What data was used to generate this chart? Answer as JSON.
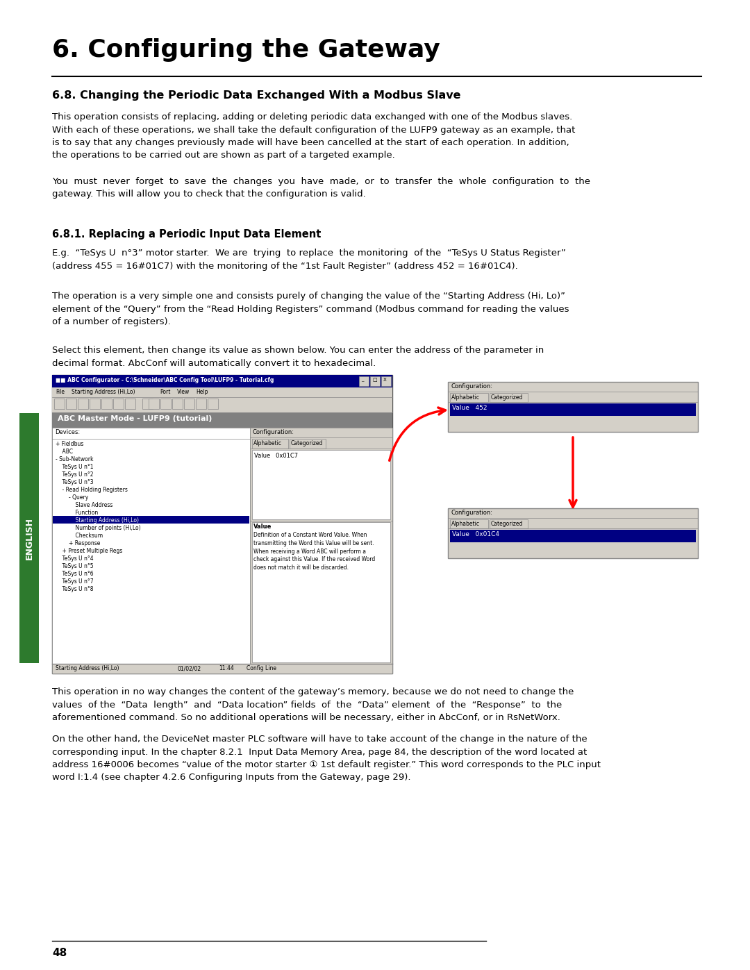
{
  "title": "6. Configuring the Gateway",
  "section_heading": "6.8. Changing the Periodic Data Exchanged With a Modbus Slave",
  "para1": "This operation consists of replacing, adding or deleting periodic data exchanged with one of the Modbus slaves.\nWith each of these operations, we shall take the default configuration of the LUFP9 gateway as an example, that\nis to say that any changes previously made will have been cancelled at the start of each operation. In addition,\nthe operations to be carried out are shown as part of a targeted example.",
  "para2": "You  must  never  forget  to  save  the  changes  you  have  made,  or  to  transfer  the  whole  configuration  to  the\ngateway. This will allow you to check that the configuration is valid.",
  "sub_heading": "6.8.1. Replacing a Periodic Input Data Element",
  "para3": "E.g.  “TeSys U  n°3” motor starter.  We are  trying  to replace  the monitoring  of the  “TeSys U Status Register”\n(address 455 = 16#01C7) with the monitoring of the “1st Fault Register” (address 452 = 16#01C4).",
  "para4": "The operation is a very simple one and consists purely of changing the value of the “Starting Address (Hi, Lo)”\nelement of the “Query” from the “Read Holding Registers” command (Modbus command for reading the values\nof a number of registers).",
  "para5": "Select this element, then change its value as shown below. You can enter the address of the parameter in\ndecimal format. AbcConf will automatically convert it to hexadecimal.",
  "para6": "This operation in no way changes the content of the gateway’s memory, because we do not need to change the\nvalues  of the  “Data  length”  and  “Data location” fields  of  the  “Data” element  of  the  “Response”  to  the\naforementioned command. So no additional operations will be necessary, either in AbcConf, or in RsNetWorx.",
  "para7": "On the other hand, the DeviceNet master PLC software will have to take account of the change in the nature of the\ncorresponding input. In the chapter 8.2.1  Input Data Memory Area, page 84, the description of the word located at\naddress 16#0006 becomes “value of the motor starter ① 1st default register.” This word corresponds to the PLC input\nword I:1.4 (see chapter 4.2.6 Configuring Inputs from the Gateway, page 29).",
  "page_num": "48",
  "english_label": "ENGLISH",
  "bg_color": "#ffffff",
  "text_color": "#000000",
  "english_bg": "#2d7a2d",
  "english_text": "#ffffff"
}
